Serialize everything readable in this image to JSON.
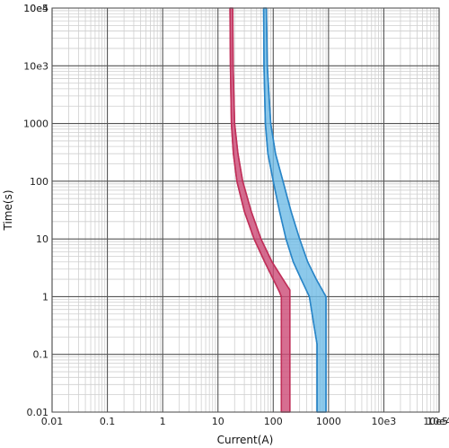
{
  "chart_data": {
    "type": "area",
    "title": "",
    "xlabel": "Current(A)",
    "ylabel": "Time(s)",
    "xscale": "log",
    "yscale": "log",
    "xlim": [
      0.01,
      100000
    ],
    "ylim": [
      0.01,
      100000
    ],
    "grid": true,
    "legend": "none",
    "x_tick_labels": [
      "0.01",
      "0.1",
      "1",
      "10",
      "100",
      "1000",
      "10e3",
      "10e4",
      "10e5"
    ],
    "x_tick_values": [
      0.01,
      0.1,
      1,
      10,
      100,
      1000,
      10000,
      100000,
      1000000
    ],
    "y_tick_labels": [
      "0.01",
      "0.1",
      "1",
      "10",
      "100",
      "1000",
      "10e3",
      "10e4",
      "10e5"
    ],
    "y_tick_values": [
      0.01,
      0.1,
      1,
      10,
      100,
      1000,
      10000,
      100000,
      1000000
    ],
    "series": [
      {
        "color": "#c0305a",
        "fill": "#cc4a75",
        "min_curve": [
          [
            16.5,
            100000
          ],
          [
            16.8,
            10000
          ],
          [
            17.5,
            1000
          ],
          [
            19,
            300
          ],
          [
            22,
            100
          ],
          [
            30,
            30
          ],
          [
            45,
            10
          ],
          [
            70,
            4
          ],
          [
            100,
            2
          ],
          [
            130,
            1.2
          ],
          [
            140,
            1
          ],
          [
            140,
            0.01
          ]
        ],
        "max_curve": [
          [
            18.5,
            100000
          ],
          [
            18.8,
            10000
          ],
          [
            20,
            1000
          ],
          [
            23,
            300
          ],
          [
            28,
            100
          ],
          [
            40,
            30
          ],
          [
            60,
            10
          ],
          [
            95,
            4
          ],
          [
            150,
            2
          ],
          [
            200,
            1.3
          ],
          [
            200,
            0.01
          ]
        ]
      },
      {
        "color": "#2a86c8",
        "fill": "#6fbbe6",
        "min_curve": [
          [
            67,
            100000
          ],
          [
            68,
            10000
          ],
          [
            72,
            1000
          ],
          [
            80,
            300
          ],
          [
            100,
            100
          ],
          [
            130,
            30
          ],
          [
            170,
            10
          ],
          [
            230,
            4
          ],
          [
            320,
            2
          ],
          [
            450,
            1
          ],
          [
            550,
            0.3
          ],
          [
            620,
            0.15
          ],
          [
            620,
            0.01
          ]
        ],
        "max_curve": [
          [
            75,
            100000
          ],
          [
            78,
            10000
          ],
          [
            90,
            1000
          ],
          [
            110,
            300
          ],
          [
            150,
            100
          ],
          [
            210,
            30
          ],
          [
            300,
            10
          ],
          [
            420,
            4
          ],
          [
            600,
            2
          ],
          [
            900,
            1
          ],
          [
            900,
            0.01
          ]
        ]
      }
    ]
  }
}
